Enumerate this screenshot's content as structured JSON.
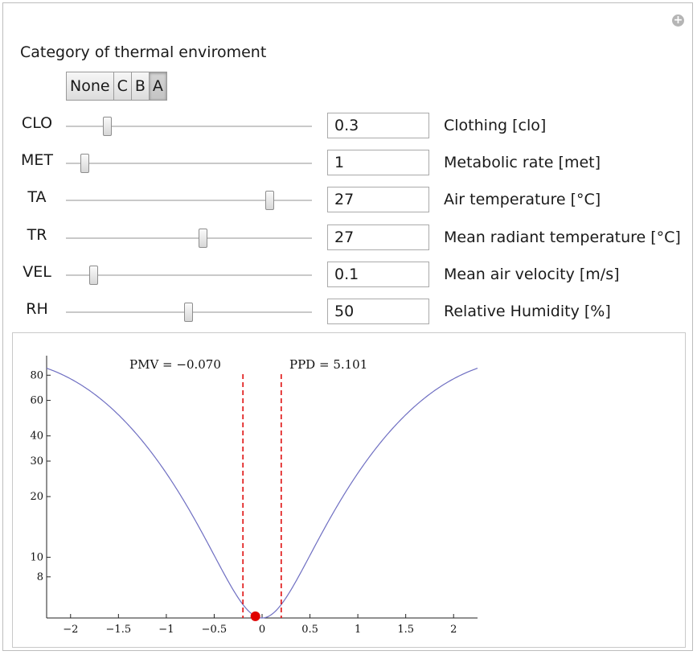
{
  "category": {
    "label": "Category of thermal enviroment",
    "options": [
      "None",
      "C",
      "B",
      "A"
    ],
    "selected": "A"
  },
  "controls": [
    {
      "code": "CLO",
      "value": "0.3",
      "description": "Clothing [clo]",
      "position": 0.17
    },
    {
      "code": "MET",
      "value": "1",
      "description": "Metabolic rate [met]",
      "position": 0.08
    },
    {
      "code": "TA",
      "value": "27",
      "description": "Air temperature [°C]",
      "position": 0.83
    },
    {
      "code": "TR",
      "value": "27",
      "description": "Mean radiant temperature [°C]",
      "position": 0.56
    },
    {
      "code": "VEL",
      "value": "0.1",
      "description": "Mean air velocity [m/s]",
      "position": 0.115
    },
    {
      "code": "RH",
      "value": "50",
      "description": "Relative Humidity [%]",
      "position": 0.5
    }
  ],
  "chart_data": {
    "type": "line",
    "y_scale": "log",
    "xlim": [
      -2.25,
      2.25
    ],
    "ylim": [
      5,
      100
    ],
    "x_ticks": [
      -2,
      -1.5,
      -1,
      -0.5,
      0,
      0.5,
      1,
      1.5,
      2
    ],
    "x_tick_labels": [
      "−2",
      "−1.5",
      "−1",
      "−0.5",
      "0",
      "0.5",
      "1",
      "1.5",
      "2"
    ],
    "y_ticks": [
      8,
      10,
      20,
      30,
      40,
      60,
      80
    ],
    "y_tick_labels": [
      "8",
      "10",
      "20",
      "30",
      "40",
      "60",
      "80"
    ],
    "curve": "PPD = 100 − 95·exp(−0.03353·PMV⁴ − 0.2179·PMV²)",
    "category_limits": [
      -0.2,
      0.2
    ],
    "point": {
      "pmv": -0.07,
      "ppd": 5.101
    },
    "annotations": {
      "pmv_text": "PMV = −0.070",
      "ppd_text": "PPD = 5.101"
    },
    "colors": {
      "curve": "#6f6fc2",
      "limits": "#e01010",
      "point": "#e00000"
    }
  }
}
